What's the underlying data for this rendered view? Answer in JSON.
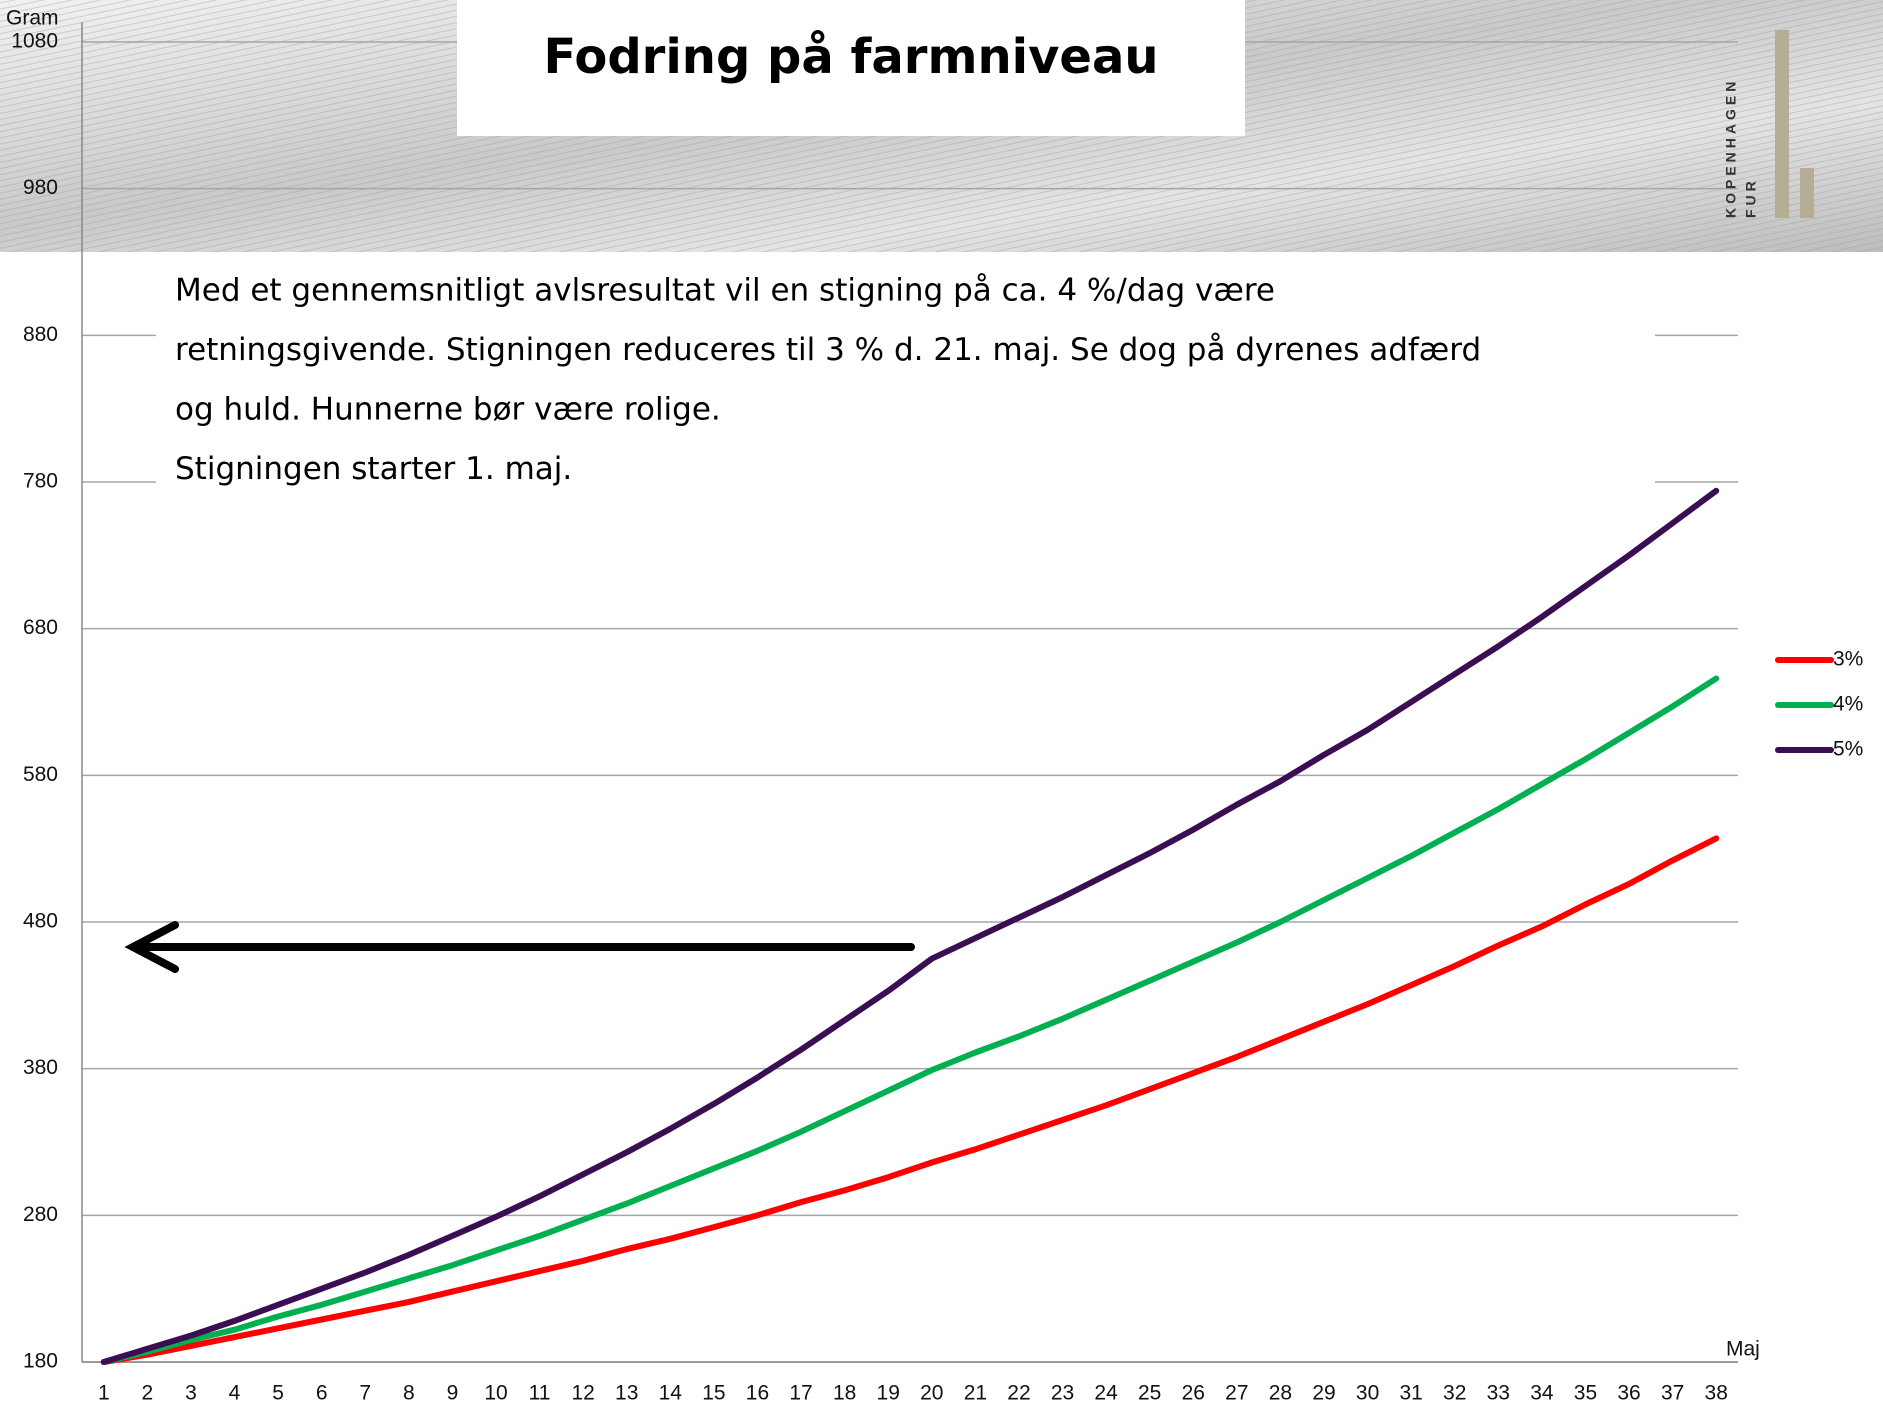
{
  "chart_data": {
    "type": "line",
    "title": "Fodring på farmniveau",
    "y_label": "Gram",
    "x_label": "Maj",
    "annotation": [
      "Med et gennemsnitligt avlsresultat vil en stigning på ca. 4 %/dag være",
      "retningsgivende. Stigningen reduceres til 3 % d. 21. maj. Se dog på dyrenes adfærd",
      "og huld. Hunnerne bør være rolige.",
      "Stigningen starter 1. maj."
    ],
    "categories": [
      "1",
      "2",
      "3",
      "4",
      "5",
      "6",
      "7",
      "8",
      "9",
      "10",
      "11",
      "12",
      "13",
      "14",
      "15",
      "16",
      "17",
      "18",
      "19",
      "20",
      "21",
      "22",
      "23",
      "24",
      "25",
      "26",
      "27",
      "28",
      "29",
      "30",
      "31",
      "32",
      "33",
      "34",
      "35",
      "36",
      "37",
      "38"
    ],
    "series": [
      {
        "name": "3%",
        "color": "#ff0000",
        "values": [
          180,
          185,
          191,
          197,
          203,
          209,
          215,
          221,
          228,
          235,
          242,
          249,
          257,
          264,
          272,
          280,
          289,
          297,
          306,
          316,
          325,
          335,
          345,
          355,
          366,
          377,
          388,
          400,
          412,
          424,
          437,
          450,
          464,
          477,
          492,
          506,
          522,
          537
        ]
      },
      {
        "name": "4%",
        "color": "#00b050",
        "values": [
          180,
          187,
          195,
          202,
          211,
          219,
          228,
          237,
          246,
          256,
          266,
          277,
          288,
          300,
          312,
          324,
          337,
          351,
          365,
          379,
          391,
          402,
          414,
          427,
          440,
          453,
          466,
          480,
          495,
          510,
          525,
          541,
          557,
          574,
          591,
          609,
          627,
          646
        ]
      },
      {
        "name": "5%",
        "color": "#3b0d52",
        "values": [
          180,
          189,
          198,
          208,
          219,
          230,
          241,
          253,
          266,
          279,
          293,
          308,
          323,
          339,
          356,
          374,
          393,
          413,
          433,
          455,
          469,
          483,
          497,
          512,
          527,
          543,
          560,
          576,
          594,
          611,
          630,
          649,
          668,
          688,
          709,
          730,
          752,
          774
        ]
      }
    ],
    "ylim": [
      180,
      1080
    ],
    "yticks": [
      180,
      280,
      380,
      480,
      580,
      680,
      780,
      880,
      980,
      1080
    ],
    "grid": true,
    "legend": "right"
  },
  "logo": [
    "KOPENHAGEN",
    "FUR"
  ]
}
